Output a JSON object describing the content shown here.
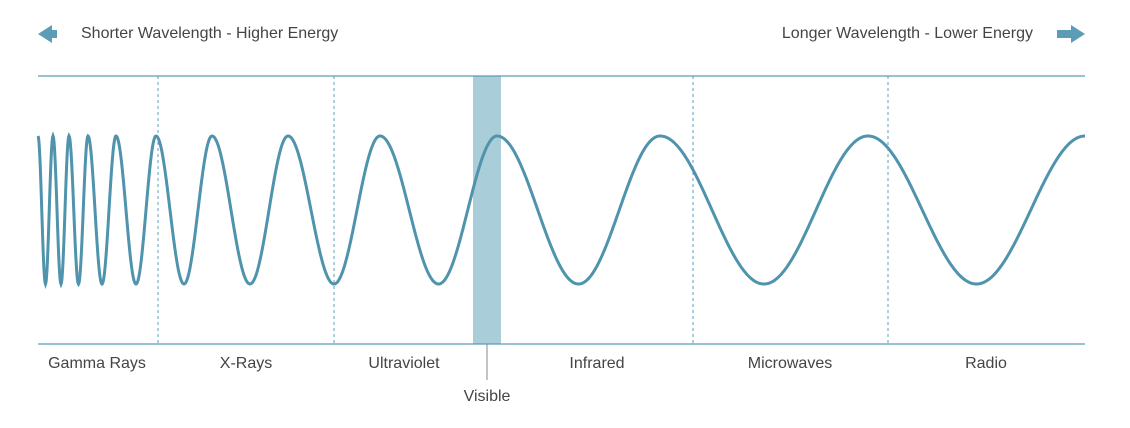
{
  "header": {
    "left_label": "Shorter Wavelength - Higher Energy",
    "right_label": "Longer Wavelength - Lower Energy"
  },
  "bands": [
    {
      "label": "Gamma Rays"
    },
    {
      "label": "X-Rays"
    },
    {
      "label": "Ultraviolet"
    },
    {
      "label": "Visible"
    },
    {
      "label": "Infrared"
    },
    {
      "label": "Microwaves"
    },
    {
      "label": "Radio"
    }
  ]
}
